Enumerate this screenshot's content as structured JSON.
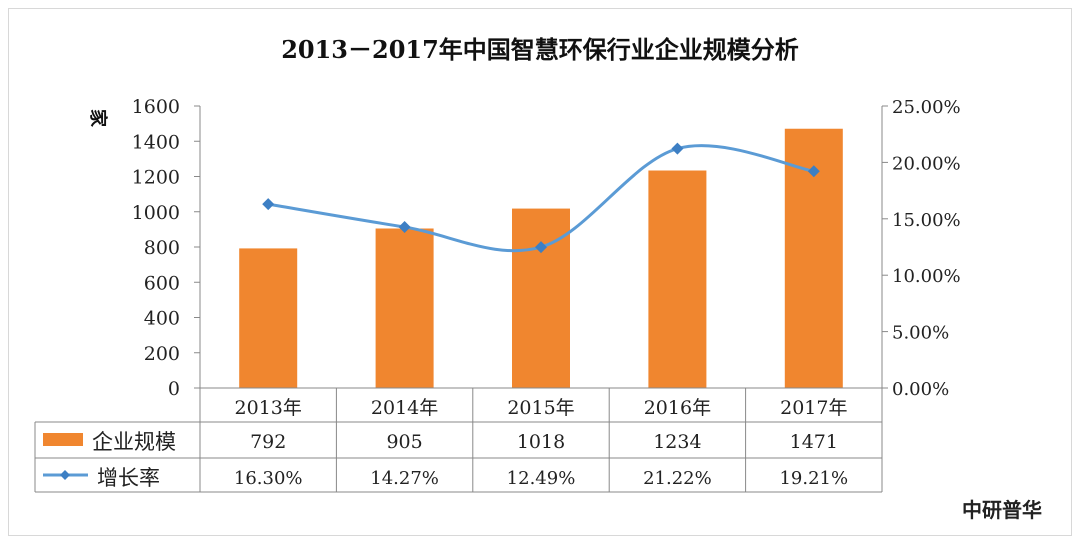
{
  "chart_data": {
    "type": "bar+line",
    "title": "2013－2017年中国智慧环保行业企业规模分析",
    "ylabel": "家",
    "categories": [
      "2013年",
      "2014年",
      "2015年",
      "2016年",
      "2017年"
    ],
    "ylim": [
      0,
      1600
    ],
    "yticks": [
      "0",
      "200",
      "400",
      "600",
      "800",
      "1000",
      "1200",
      "1400",
      "1600"
    ],
    "y2lim": [
      0,
      25
    ],
    "y2ticks": [
      "0.00%",
      "5.00%",
      "10.00%",
      "15.00%",
      "20.00%",
      "25.00%"
    ],
    "series": [
      {
        "name": "企业规模",
        "type": "bar",
        "axis": "left",
        "color": "#f0862f",
        "values": [
          792,
          905,
          1018,
          1234,
          1471
        ],
        "labels": [
          "792",
          "905",
          "1018",
          "1234",
          "1471"
        ]
      },
      {
        "name": "增长率",
        "type": "line",
        "axis": "right",
        "color": "#5b9bd5",
        "values": [
          16.3,
          14.27,
          12.49,
          21.22,
          19.21
        ],
        "labels": [
          "16.30%",
          "14.27%",
          "12.49%",
          "21.22%",
          "19.21%"
        ]
      }
    ],
    "grid": false,
    "legend": "data-table"
  },
  "watermark": "中研普华"
}
